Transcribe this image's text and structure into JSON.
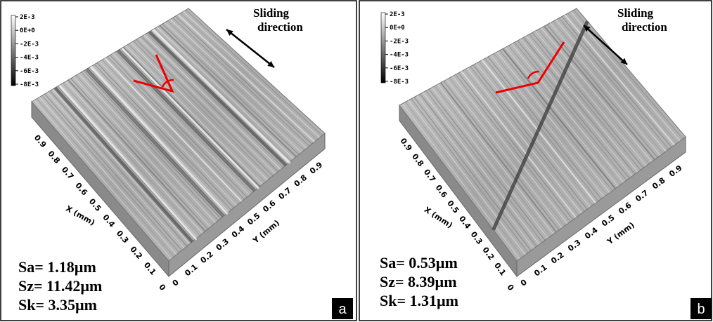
{
  "panels": [
    {
      "label": "a",
      "colorbar": [
        "2E-3",
        "0E+0",
        "-2E-3",
        "-4E-3",
        "-6E-3",
        "-8E-3"
      ],
      "annotation": [
        "Sliding",
        "direction"
      ],
      "x_axis": {
        "title": "X (mm)",
        "ticks": [
          "0",
          "0.1",
          "0.2",
          "0.3",
          "0.4",
          "0.5",
          "0.6",
          "0.7",
          "0.8",
          "0.9"
        ]
      },
      "y_axis": {
        "title": "Y (mm)",
        "ticks": [
          "0",
          "0.1",
          "0.2",
          "0.3",
          "0.4",
          "0.5",
          "0.6",
          "0.7",
          "0.8",
          "0.9"
        ]
      },
      "stats": [
        "Sa= 1.18µm",
        "Sz= 11.42µm",
        "Sk= 3.35µm"
      ]
    },
    {
      "label": "b",
      "colorbar": [
        "2E-3",
        "0E+0",
        "-2E-3",
        "-4E-3",
        "-6E-3",
        "-8E-3"
      ],
      "annotation": [
        "Sliding",
        "direction"
      ],
      "x_axis": {
        "title": "X (mm)",
        "ticks": [
          "0",
          "0.1",
          "0.2",
          "0.3",
          "0.4",
          "0.5",
          "0.6",
          "0.7",
          "0.8",
          "0.9"
        ]
      },
      "y_axis": {
        "title": "Y (mm)",
        "ticks": [
          "0",
          "0.1",
          "0.2",
          "0.3",
          "0.4",
          "0.5",
          "0.6",
          "0.7",
          "0.8",
          "0.9"
        ]
      },
      "stats": [
        "Sa= 0.53µm",
        "Sz= 8.39µm",
        "Sk= 1.31µm"
      ]
    }
  ]
}
